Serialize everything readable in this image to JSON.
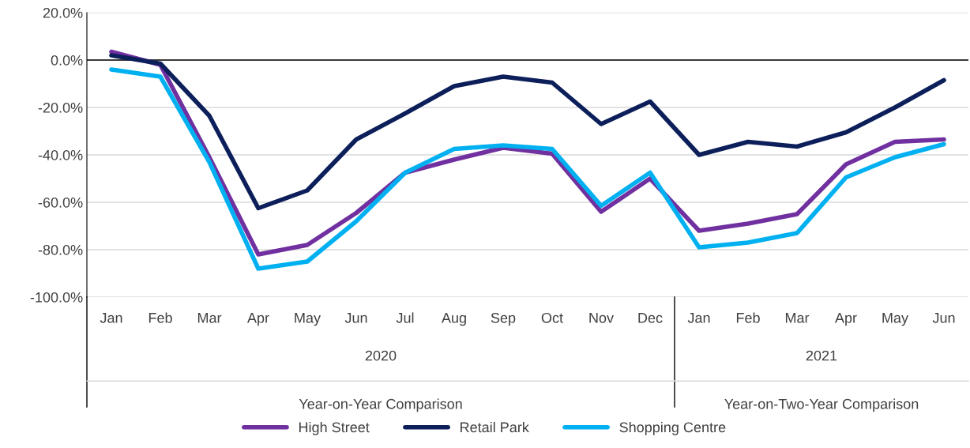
{
  "chart_data": {
    "type": "line",
    "categories": [
      "Jan",
      "Feb",
      "Mar",
      "Apr",
      "May",
      "Jun",
      "Jul",
      "Aug",
      "Sep",
      "Oct",
      "Nov",
      "Dec",
      "Jan",
      "Feb",
      "Mar",
      "Apr",
      "May",
      "Jun"
    ],
    "series": [
      {
        "name": "High Street",
        "color": "#7030a0",
        "values": [
          3.5,
          -2,
          -41,
          -82,
          -78,
          -64.5,
          -47.5,
          -42,
          -37,
          -39.5,
          -64,
          -50,
          -72,
          -69,
          -65,
          -44,
          -34.5,
          -33.5
        ]
      },
      {
        "name": "Retail Park",
        "color": "#0c1f5a",
        "values": [
          2,
          -1.5,
          -23.5,
          -62.5,
          -55,
          -33.5,
          -22.5,
          -11,
          -7,
          -9.5,
          -27,
          -17.5,
          -40,
          -34.5,
          -36.5,
          -30.5,
          -20,
          -8.5
        ]
      },
      {
        "name": "Shopping Centre",
        "color": "#00b0f0",
        "values": [
          -4,
          -7,
          -43,
          -88,
          -85,
          -68,
          -47.5,
          -37.5,
          -36,
          -37.5,
          -61.5,
          -47.5,
          -79,
          -77,
          -73,
          -49.5,
          -41,
          -35.5
        ]
      }
    ],
    "ylim": [
      -100,
      20
    ],
    "yticks": [
      {
        "value": -100,
        "label": "-100.0%"
      },
      {
        "value": -80,
        "label": "-80.0%"
      },
      {
        "value": -60,
        "label": "-60.0%"
      },
      {
        "value": -40,
        "label": "-40.0%"
      },
      {
        "value": -20,
        "label": "-20.0%"
      },
      {
        "value": 0,
        "label": "0.0%"
      },
      {
        "value": 20,
        "label": "20.0%"
      }
    ],
    "ref_lines": [
      {
        "axis": "y",
        "value": 0,
        "color": "#000000"
      }
    ],
    "annotations": [
      "2020",
      "2021",
      "Year-on-Year Comparison",
      "Year-on-Two-Year Comparison"
    ],
    "grid": "y",
    "legend": "bottom",
    "marker": "none",
    "line_style": "solid"
  }
}
